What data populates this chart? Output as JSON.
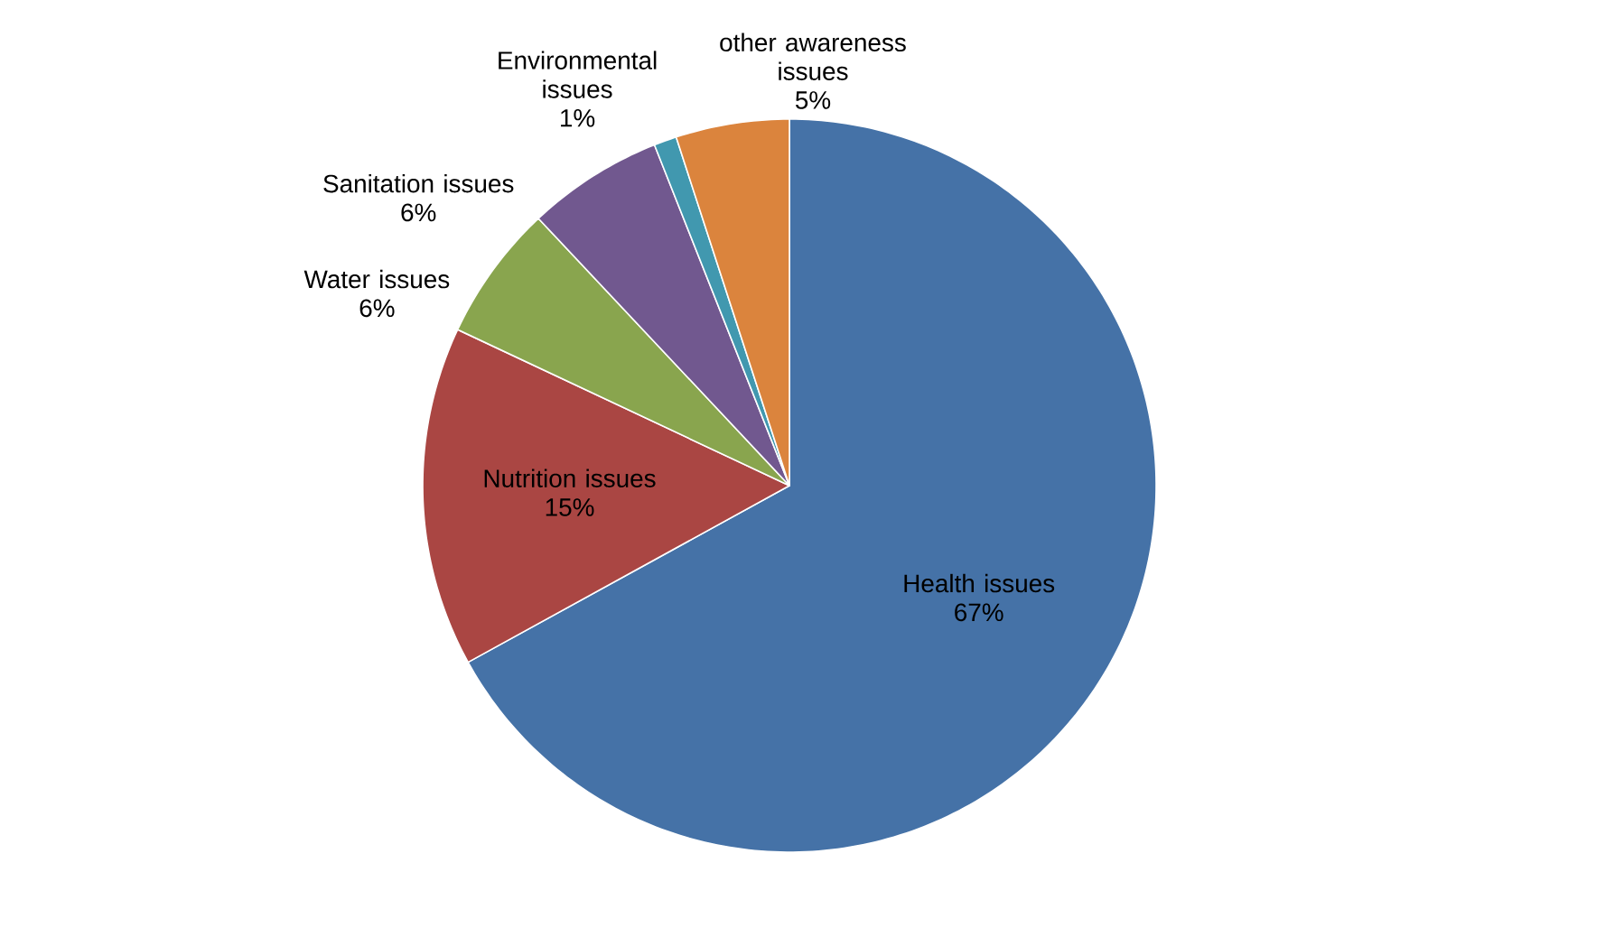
{
  "chart_data": {
    "type": "pie",
    "categories": [
      "Health issues",
      "Nutrition issues",
      "Water issues",
      "Sanitation issues",
      "Environmental issues",
      "other awareness issues"
    ],
    "values": [
      67,
      15,
      6,
      6,
      1,
      5
    ],
    "value_labels": [
      "67%",
      "15%",
      "6%",
      "6%",
      "1%",
      "5%"
    ],
    "colors": [
      "#4572a7",
      "#aa4643",
      "#89a54e",
      "#71588f",
      "#4198af",
      "#db843d"
    ],
    "legend": false
  }
}
